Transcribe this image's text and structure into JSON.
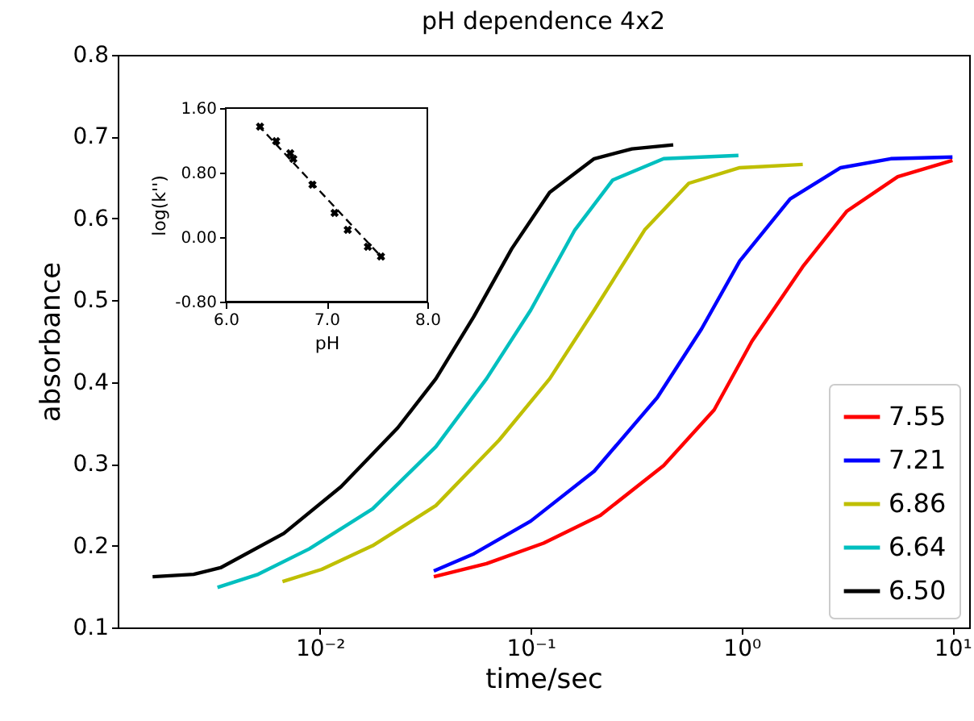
{
  "chart_data": [
    {
      "type": "line",
      "title": "pH dependence 4x2",
      "xlabel": "time/sec",
      "ylabel": "absorbance",
      "log": "x",
      "xlim": [
        0.0011,
        12
      ],
      "ylim": [
        0.1,
        0.8
      ],
      "xticks": [
        {
          "value": 0.01,
          "label": "10⁻²"
        },
        {
          "value": 0.1,
          "label": "10⁻¹"
        },
        {
          "value": 1,
          "label": "10⁰"
        },
        {
          "value": 10,
          "label": "10¹"
        }
      ],
      "yticks": [
        0.1,
        0.2,
        0.3,
        0.4,
        0.5,
        0.6,
        0.7,
        0.8
      ],
      "grid": false,
      "legend": "bottom right",
      "series": [
        {
          "name": "7.55",
          "color": "#ff0000",
          "x": [
            0.0347,
            0.0617,
            0.115,
            0.214,
            0.427,
            0.741,
            1.12,
            1.95,
            3.16,
            5.5,
            10
          ],
          "values": [
            0.162,
            0.178,
            0.203,
            0.237,
            0.298,
            0.366,
            0.45,
            0.541,
            0.609,
            0.651,
            0.671
          ]
        },
        {
          "name": "7.21",
          "color": "#0000ff",
          "x": [
            0.0347,
            0.0537,
            0.1,
            0.2,
            0.398,
            0.646,
            0.98,
            1.7,
            2.95,
            5.1,
            10
          ],
          "values": [
            0.169,
            0.19,
            0.23,
            0.291,
            0.381,
            0.465,
            0.548,
            0.624,
            0.662,
            0.673,
            0.675
          ]
        },
        {
          "name": "6.86",
          "color": "#bfbf00",
          "x": [
            0.00665,
            0.0102,
            0.0178,
            0.0355,
            0.0708,
            0.123,
            0.2,
            0.347,
            0.562,
            0.98,
            1.95
          ],
          "values": [
            0.156,
            0.171,
            0.2,
            0.249,
            0.329,
            0.404,
            0.488,
            0.586,
            0.643,
            0.662,
            0.666
          ]
        },
        {
          "name": "6.64",
          "color": "#00bfbf",
          "x": [
            0.00327,
            0.0051,
            0.0089,
            0.0178,
            0.0355,
            0.0617,
            0.1,
            0.162,
            0.245,
            0.427,
            0.966
          ],
          "values": [
            0.149,
            0.165,
            0.196,
            0.245,
            0.321,
            0.404,
            0.488,
            0.586,
            0.647,
            0.673,
            0.677
          ]
        },
        {
          "name": "6.50",
          "color": "#000000",
          "x": [
            0.00161,
            0.00252,
            0.00338,
            0.00675,
            0.0126,
            0.0234,
            0.0355,
            0.0537,
            0.0813,
            0.123,
            0.2,
            0.302,
            0.474
          ],
          "values": [
            0.162,
            0.165,
            0.173,
            0.215,
            0.272,
            0.344,
            0.404,
            0.48,
            0.563,
            0.632,
            0.673,
            0.685,
            0.69
          ]
        }
      ]
    },
    {
      "type": "scatter",
      "xlabel": "pH",
      "ylabel": "log(k'')",
      "xlim": [
        6,
        8
      ],
      "ylim": [
        -0.8,
        1.6
      ],
      "grid": false,
      "xticks": [
        {
          "value": 6,
          "label": "6.0"
        },
        {
          "value": 7,
          "label": "7.0"
        },
        {
          "value": 8,
          "label": "8.0"
        }
      ],
      "yticks": [
        {
          "value": -0.8,
          "label": "-0.80"
        },
        {
          "value": 0,
          "label": "0.00"
        },
        {
          "value": 0.8,
          "label": "0.80"
        },
        {
          "value": 1.6,
          "label": "1.60"
        }
      ],
      "series": [
        {
          "color": "#000000",
          "marker": "cross",
          "x": [
            6.34,
            6.5,
            6.64,
            6.67,
            6.86,
            7.08,
            7.21,
            7.41,
            7.54
          ],
          "values": [
            1.37,
            1.19,
            1.04,
            0.97,
            0.65,
            0.3,
            0.09,
            -0.12,
            -0.24
          ]
        },
        {
          "type": "line",
          "color": "#000000",
          "line_style": "dashed",
          "x": [
            6.32,
            7.57
          ],
          "values": [
            1.39,
            -0.28
          ]
        }
      ]
    }
  ]
}
